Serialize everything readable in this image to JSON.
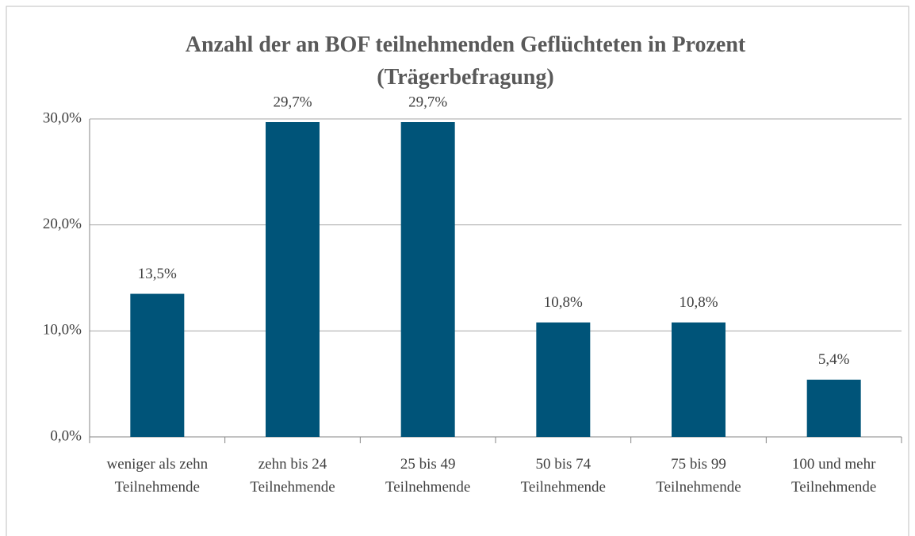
{
  "chart_data": {
    "type": "bar",
    "title": "Anzahl der an BOF teilnehmenden Geflüchteten in Prozent (Trägerbefragung)",
    "categories": [
      "weniger als zehn Teilnehmende",
      "zehn bis 24 Teilnehmende",
      "25 bis 49 Teilnehmende",
      "50 bis 74 Teilnehmende",
      "75 bis 99 Teilnehmende",
      "100 und mehr Teilnehmende"
    ],
    "values": [
      13.5,
      29.7,
      29.7,
      10.8,
      10.8,
      5.4
    ],
    "value_labels": [
      "13,5%",
      "29,7%",
      "29,7%",
      "10,8%",
      "10,8%",
      "5,4%"
    ],
    "color": "#005479",
    "ylim": [
      0,
      30
    ],
    "yticks": [
      {
        "value": 0,
        "label": "0,0%"
      },
      {
        "value": 10,
        "label": "10,0%"
      },
      {
        "value": 20,
        "label": "20,0%"
      },
      {
        "value": 30,
        "label": "30,0%"
      }
    ],
    "grid": true
  }
}
